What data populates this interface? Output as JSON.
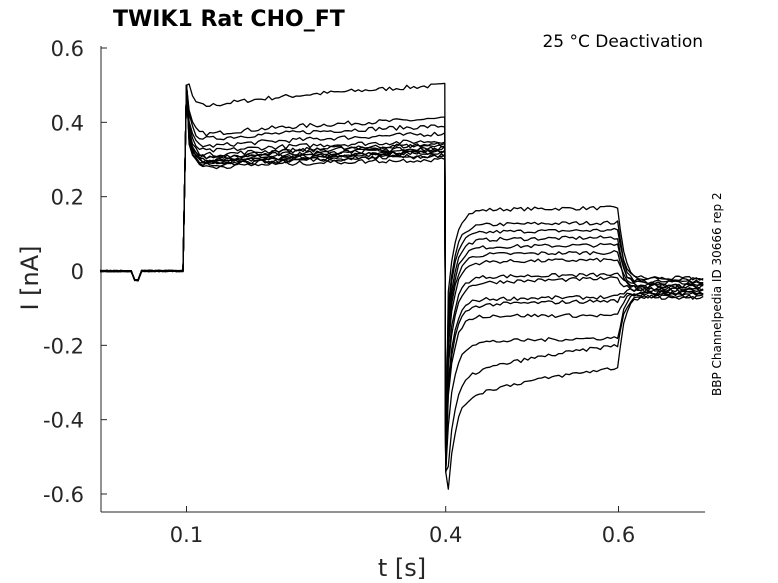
{
  "chart_data": {
    "type": "line",
    "title": "TWIK1  Rat  CHO_FT",
    "annotation": "25 °C  Deactivation",
    "side_label": "BBP Channelpedia ID 30666 rep 2",
    "xlabel": "t [s]",
    "ylabel": "I [nA]",
    "xlim": [
      0.0,
      0.7
    ],
    "ylim": [
      -0.65,
      0.62
    ],
    "x_ticks": [
      0.1,
      0.4,
      0.6
    ],
    "x_tick_labels": [
      "0.1",
      "0.4",
      "0.6"
    ],
    "y_ticks": [
      0.6,
      0.4,
      0.2,
      0,
      -0.2,
      -0.4,
      -0.6
    ],
    "y_tick_labels": [
      "0.6",
      "0.4",
      "0.2",
      "0",
      "-0.2",
      "-0.4",
      "-0.6"
    ],
    "grid": false,
    "protocol": {
      "activation_start_s": 0.1,
      "deactivation_start_s": 0.4,
      "deactivation_end_s": 0.6,
      "end_s": 0.7
    },
    "series": [
      {
        "activation_current_nA": [
          0.42,
          0.5
        ],
        "deactivation_current_nA": [
          0.16,
          0.17
        ],
        "tail_current_nA": -0.02
      },
      {
        "activation_current_nA": [
          0.35,
          0.41
        ],
        "deactivation_current_nA": [
          0.12,
          0.13
        ],
        "tail_current_nA": -0.03
      },
      {
        "activation_current_nA": [
          0.34,
          0.39
        ],
        "deactivation_current_nA": [
          0.1,
          0.11
        ],
        "tail_current_nA": -0.02
      },
      {
        "activation_current_nA": [
          0.32,
          0.37
        ],
        "deactivation_current_nA": [
          0.08,
          0.09
        ],
        "tail_current_nA": -0.04
      },
      {
        "activation_current_nA": [
          0.31,
          0.35
        ],
        "deactivation_current_nA": [
          0.06,
          0.07
        ],
        "tail_current_nA": -0.03
      },
      {
        "activation_current_nA": [
          0.3,
          0.34
        ],
        "deactivation_current_nA": [
          0.04,
          0.05
        ],
        "tail_current_nA": -0.05
      },
      {
        "activation_current_nA": [
          0.29,
          0.34
        ],
        "deactivation_current_nA": [
          0.02,
          0.03
        ],
        "tail_current_nA": -0.04
      },
      {
        "activation_current_nA": [
          0.29,
          0.33
        ],
        "deactivation_current_nA": [
          -0.02,
          -0.01
        ],
        "tail_current_nA": -0.04
      },
      {
        "activation_current_nA": [
          0.285,
          0.33
        ],
        "deactivation_current_nA": [
          -0.04,
          -0.02
        ],
        "tail_current_nA": -0.05
      },
      {
        "activation_current_nA": [
          0.28,
          0.32
        ],
        "deactivation_current_nA": [
          -0.08,
          -0.07
        ],
        "tail_current_nA": -0.05
      },
      {
        "activation_current_nA": [
          0.28,
          0.32
        ],
        "deactivation_current_nA": [
          -0.1,
          -0.08
        ],
        "tail_current_nA": -0.06
      },
      {
        "activation_current_nA": [
          0.28,
          0.32
        ],
        "deactivation_current_nA": [
          -0.12,
          -0.12
        ],
        "tail_current_nA": -0.06
      },
      {
        "activation_current_nA": [
          0.275,
          0.31
        ],
        "deactivation_current_nA": [
          -0.2,
          -0.18
        ],
        "tail_current_nA": -0.06
      },
      {
        "activation_current_nA": [
          0.275,
          0.31
        ],
        "deactivation_current_nA": [
          -0.32,
          -0.2
        ],
        "tail_current_nA": -0.07
      },
      {
        "activation_current_nA": [
          0.27,
          0.3
        ],
        "deactivation_current_nA": [
          -0.38,
          -0.26
        ],
        "tail_current_nA": -0.07
      }
    ]
  }
}
